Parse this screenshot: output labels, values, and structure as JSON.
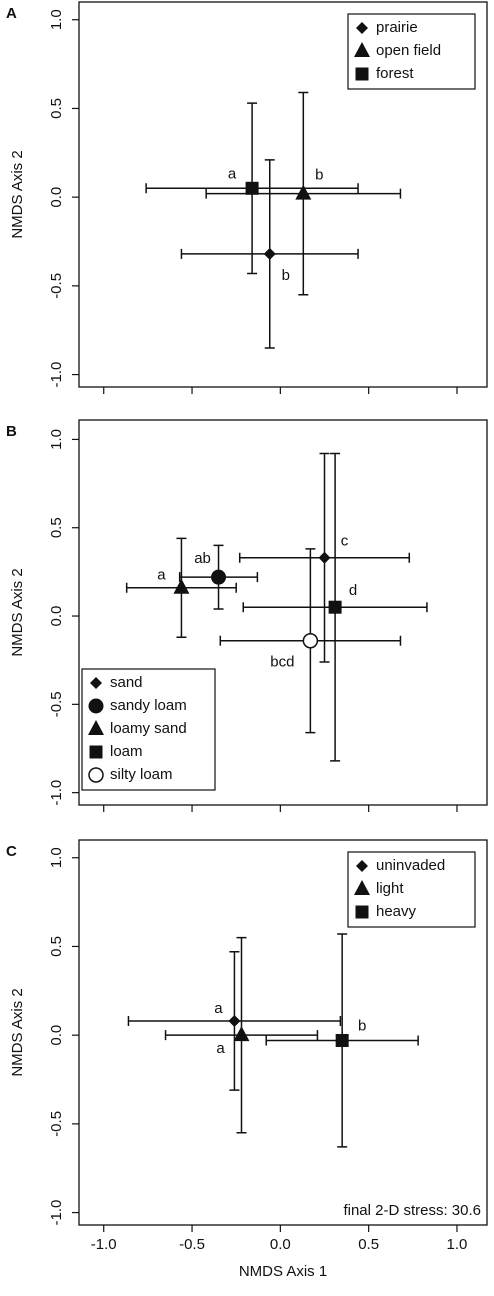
{
  "chart_data": [
    {
      "type": "scatter",
      "panel": "A",
      "ylabel": "NMDS Axis 2",
      "legend": "upper right",
      "xlim": [
        -1.14,
        1.17
      ],
      "ylim": [
        -1.07,
        1.1
      ],
      "xticks": [
        {
          "value": -1,
          "label": "-1.0"
        },
        {
          "value": -0.5,
          "label": "-0.5"
        },
        {
          "value": 0,
          "label": "0.0"
        },
        {
          "value": 0.5,
          "label": "0.5"
        },
        {
          "value": 1,
          "label": "1.0"
        }
      ],
      "yticks": [
        {
          "value": -1,
          "label": "-1.0"
        },
        {
          "value": -0.5,
          "label": "-0.5"
        },
        {
          "value": 0,
          "label": "0.0"
        },
        {
          "value": 0.5,
          "label": "0.5"
        },
        {
          "value": 1,
          "label": "1.0"
        }
      ],
      "series": [
        {
          "name": "prairie",
          "marker": "diamond",
          "color": "#111111",
          "x": [
            -0.06
          ],
          "values": [
            -0.32
          ],
          "x_err": [
            0.5
          ],
          "y_err": [
            0.53
          ],
          "letter": "b"
        },
        {
          "name": "open field",
          "marker": "triangle",
          "color": "#111111",
          "x": [
            0.13
          ],
          "values": [
            0.02
          ],
          "x_err": [
            0.55
          ],
          "y_err": [
            0.57
          ],
          "letter": "b"
        },
        {
          "name": "forest",
          "marker": "square",
          "color": "#111111",
          "x": [
            -0.16
          ],
          "values": [
            0.05
          ],
          "x_err": [
            0.6
          ],
          "y_err": [
            0.48
          ],
          "letter": "a"
        }
      ]
    },
    {
      "type": "scatter",
      "panel": "B",
      "ylabel": "NMDS Axis 2",
      "legend": "lower left",
      "xlim": [
        -1.14,
        1.17
      ],
      "ylim": [
        -1.07,
        1.11
      ],
      "xticks": [
        {
          "value": -1,
          "label": "-1.0"
        },
        {
          "value": -0.5,
          "label": "-0.5"
        },
        {
          "value": 0,
          "label": "0.0"
        },
        {
          "value": 0.5,
          "label": "0.5"
        },
        {
          "value": 1,
          "label": "1.0"
        }
      ],
      "yticks": [
        {
          "value": -1,
          "label": "-1.0"
        },
        {
          "value": -0.5,
          "label": "-0.5"
        },
        {
          "value": 0,
          "label": "0.0"
        },
        {
          "value": 0.5,
          "label": "0.5"
        },
        {
          "value": 1,
          "label": "1.0"
        }
      ],
      "series": [
        {
          "name": "sand",
          "marker": "diamond",
          "color": "#111111",
          "x": [
            0.25
          ],
          "values": [
            0.33
          ],
          "x_err": [
            0.48
          ],
          "y_err": [
            0.59
          ],
          "letter": "c"
        },
        {
          "name": "sandy loam",
          "marker": "circle",
          "color": "#111111",
          "x": [
            -0.35
          ],
          "values": [
            0.22
          ],
          "x_err": [
            0.22
          ],
          "y_err": [
            0.18
          ],
          "letter": "ab"
        },
        {
          "name": "loamy sand",
          "marker": "triangle",
          "color": "#111111",
          "x": [
            -0.56
          ],
          "values": [
            0.16
          ],
          "x_err": [
            0.31
          ],
          "y_err": [
            0.28
          ],
          "letter": "a"
        },
        {
          "name": "loam",
          "marker": "square",
          "color": "#111111",
          "x": [
            0.31
          ],
          "values": [
            0.05
          ],
          "x_err": [
            0.52
          ],
          "y_err": [
            0.87
          ],
          "letter": "d"
        },
        {
          "name": "silty loam",
          "marker": "open-circle",
          "color": "#111111",
          "x": [
            0.17
          ],
          "values": [
            -0.14
          ],
          "x_err": [
            0.51
          ],
          "y_err": [
            0.52
          ],
          "letter": "bcd"
        }
      ]
    },
    {
      "type": "scatter",
      "panel": "C",
      "ylabel": "NMDS Axis 2",
      "xlabel": "NMDS Axis 1",
      "legend": "upper right",
      "annotation": "final 2-D stress: 30.6",
      "xlim": [
        -1.14,
        1.17
      ],
      "ylim": [
        -1.07,
        1.1
      ],
      "xticks": [
        {
          "value": -1,
          "label": "-1.0"
        },
        {
          "value": -0.5,
          "label": "-0.5"
        },
        {
          "value": 0,
          "label": "0.0"
        },
        {
          "value": 0.5,
          "label": "0.5"
        },
        {
          "value": 1,
          "label": "1.0"
        }
      ],
      "yticks": [
        {
          "value": -1,
          "label": "-1.0"
        },
        {
          "value": -0.5,
          "label": "-0.5"
        },
        {
          "value": 0,
          "label": "0.0"
        },
        {
          "value": 0.5,
          "label": "0.5"
        },
        {
          "value": 1,
          "label": "1.0"
        }
      ],
      "series": [
        {
          "name": "uninvaded",
          "marker": "diamond",
          "color": "#111111",
          "x": [
            -0.26
          ],
          "values": [
            0.08
          ],
          "x_err": [
            0.6
          ],
          "y_err": [
            0.39
          ],
          "letter": "a"
        },
        {
          "name": "light",
          "marker": "triangle",
          "color": "#111111",
          "x": [
            -0.22
          ],
          "values": [
            0.0
          ],
          "x_err": [
            0.43
          ],
          "y_err": [
            0.55
          ],
          "letter": "a"
        },
        {
          "name": "heavy",
          "marker": "square",
          "color": "#111111",
          "x": [
            0.35
          ],
          "values": [
            -0.03
          ],
          "x_err": [
            0.43
          ],
          "y_err": [
            0.6
          ],
          "letter": "b"
        }
      ]
    }
  ]
}
